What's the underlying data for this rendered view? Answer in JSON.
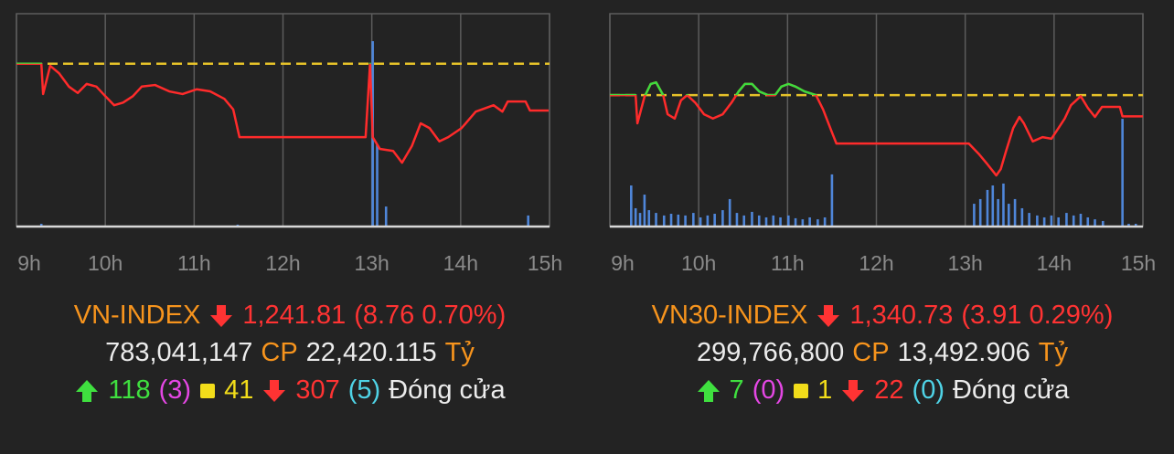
{
  "chart_data": [
    {
      "type": "line",
      "xlim": [
        9,
        15
      ],
      "xticks": [
        {
          "value": 9,
          "label": "9h"
        },
        {
          "value": 10,
          "label": "10h"
        },
        {
          "value": 11,
          "label": "11h"
        },
        {
          "value": 12,
          "label": "12h"
        },
        {
          "value": 13,
          "label": "13h"
        },
        {
          "value": 14,
          "label": "14h"
        },
        {
          "value": 15,
          "label": "15h"
        }
      ],
      "ylim": [
        1220,
        1260
      ],
      "y2lim": [
        0,
        100
      ],
      "grid": true,
      "reference": {
        "value": 1250.6,
        "color": "#e6c229"
      },
      "series": [
        {
          "color": "#ff2b2b",
          "above_color": "#3ddc3d",
          "x": [
            9.0,
            9.28,
            9.3,
            9.38,
            9.48,
            9.59,
            9.69,
            9.79,
            9.9,
            10.0,
            10.1,
            10.2,
            10.31,
            10.41,
            10.56,
            10.72,
            10.87,
            11.03,
            11.18,
            11.34,
            11.44,
            11.51,
            12.93,
            12.98,
            13.01,
            13.09,
            13.24,
            13.34,
            13.45,
            13.55,
            13.65,
            13.76,
            13.86,
            14.01,
            14.17,
            14.37,
            14.47,
            14.53,
            14.73,
            14.78,
            14.99
          ],
          "values": [
            1250.6,
            1250.6,
            1244.9,
            1250.2,
            1248.8,
            1246.3,
            1245.1,
            1246.8,
            1246.3,
            1244.5,
            1242.8,
            1243.3,
            1244.5,
            1246.3,
            1246.6,
            1245.4,
            1244.9,
            1245.8,
            1245.4,
            1244.0,
            1242.0,
            1236.8,
            1236.8,
            1250.6,
            1236.8,
            1234.6,
            1234.2,
            1232.0,
            1235.1,
            1239.4,
            1238.5,
            1236.0,
            1236.8,
            1238.5,
            1241.6,
            1242.8,
            1241.6,
            1243.5,
            1243.5,
            1241.8,
            1241.8
          ]
        },
        {
          "type": "bar",
          "axis": "y2",
          "color": "#4f86d9",
          "x": [
            9.28,
            11.49,
            13.01,
            13.06,
            13.16,
            14.76
          ],
          "values": [
            1.3,
            0.9,
            87.1,
            38.6,
            9.4,
            5.2
          ]
        }
      ]
    },
    {
      "type": "line",
      "xlim": [
        9,
        15
      ],
      "xticks": [
        {
          "value": 9,
          "label": "9h"
        },
        {
          "value": 10,
          "label": "10h"
        },
        {
          "value": 11,
          "label": "11h"
        },
        {
          "value": 12,
          "label": "12h"
        },
        {
          "value": 13,
          "label": "13h"
        },
        {
          "value": 14,
          "label": "14h"
        },
        {
          "value": 15,
          "label": "15h"
        }
      ],
      "ylim": [
        1320,
        1360
      ],
      "y2lim": [
        0,
        100
      ],
      "grid": true,
      "reference": {
        "value": 1344.7,
        "color": "#e6c229"
      },
      "series": [
        {
          "color": "#ff2b2b",
          "above_color": "#3ddc3d",
          "x": [
            9.0,
            9.29,
            9.31,
            9.39,
            9.46,
            9.52,
            9.6,
            9.65,
            9.73,
            9.8,
            9.87,
            9.96,
            10.06,
            10.16,
            10.27,
            10.37,
            10.45,
            10.52,
            10.6,
            10.68,
            10.78,
            10.86,
            10.93,
            11.01,
            11.09,
            11.19,
            11.32,
            11.4,
            11.5,
            11.55,
            13.04,
            13.15,
            13.25,
            13.35,
            13.4,
            13.46,
            13.54,
            13.61,
            13.66,
            13.76,
            13.87,
            13.97,
            14.05,
            14.12,
            14.19,
            14.3,
            14.38,
            14.46,
            14.54,
            14.74,
            14.77,
            15.0
          ],
          "values": [
            1344.7,
            1344.7,
            1339.4,
            1344.4,
            1346.8,
            1347.1,
            1344.7,
            1341.1,
            1340.3,
            1343.7,
            1344.7,
            1343.3,
            1341.1,
            1340.3,
            1341.1,
            1343.3,
            1345.4,
            1346.8,
            1346.8,
            1345.4,
            1344.7,
            1344.7,
            1346.3,
            1346.8,
            1346.3,
            1345.4,
            1344.7,
            1342.0,
            1337.7,
            1335.6,
            1335.6,
            1333.7,
            1331.7,
            1329.6,
            1330.8,
            1334.2,
            1338.5,
            1340.6,
            1339.4,
            1336.0,
            1336.8,
            1336.5,
            1338.5,
            1340.3,
            1342.8,
            1344.5,
            1342.3,
            1340.6,
            1342.5,
            1342.5,
            1340.7,
            1340.7
          ]
        },
        {
          "type": "bar",
          "axis": "y2",
          "color": "#4f86d9",
          "x": [
            9.24,
            9.29,
            9.34,
            9.39,
            9.44,
            9.52,
            9.61,
            9.69,
            9.77,
            9.85,
            9.94,
            10.02,
            10.1,
            10.18,
            10.27,
            10.35,
            10.43,
            10.51,
            10.6,
            10.68,
            10.76,
            10.84,
            10.92,
            11.01,
            11.09,
            11.17,
            11.25,
            11.34,
            11.42,
            11.5,
            13.1,
            13.17,
            13.25,
            13.31,
            13.37,
            13.43,
            13.49,
            13.56,
            13.64,
            13.72,
            13.81,
            13.89,
            13.97,
            14.05,
            14.14,
            14.22,
            14.3,
            14.38,
            14.46,
            14.55,
            14.77,
            14.84,
            14.92
          ],
          "values": [
            19.3,
            8.6,
            6.4,
            15.0,
            7.7,
            6.4,
            5.2,
            6.0,
            5.6,
            5.2,
            6.4,
            4.3,
            5.2,
            6.0,
            7.7,
            12.9,
            6.4,
            5.2,
            6.9,
            5.2,
            4.3,
            5.2,
            4.3,
            5.2,
            3.9,
            3.4,
            4.3,
            3.4,
            4.3,
            24.5,
            10.7,
            12.9,
            17.2,
            19.3,
            12.9,
            20.2,
            10.7,
            12.9,
            8.6,
            6.4,
            5.2,
            4.3,
            5.2,
            4.3,
            6.4,
            5.2,
            6.0,
            4.3,
            3.4,
            2.6,
            50.6,
            1.3,
            1.3
          ]
        }
      ]
    }
  ],
  "summaries": [
    {
      "name": "VN-INDEX",
      "price": "1,241.81",
      "change": "(8.76 0.70%)",
      "volume": "783,041,147",
      "volume_unit": "CP",
      "value": "22,420.115",
      "value_unit": "Tỷ",
      "advances": "118",
      "ceiling": "(3)",
      "unchanged": "41",
      "declines": "307",
      "floor": "(5)",
      "status": "Đóng cửa"
    },
    {
      "name": "VN30-INDEX",
      "price": "1,340.73",
      "change": "(3.91 0.29%)",
      "volume": "299,766,800",
      "volume_unit": "CP",
      "value": "13,492.906",
      "value_unit": "Tỷ",
      "advances": "7",
      "ceiling": "(0)",
      "unchanged": "1",
      "declines": "22",
      "floor": "(0)",
      "status": "Đóng cửa"
    }
  ]
}
